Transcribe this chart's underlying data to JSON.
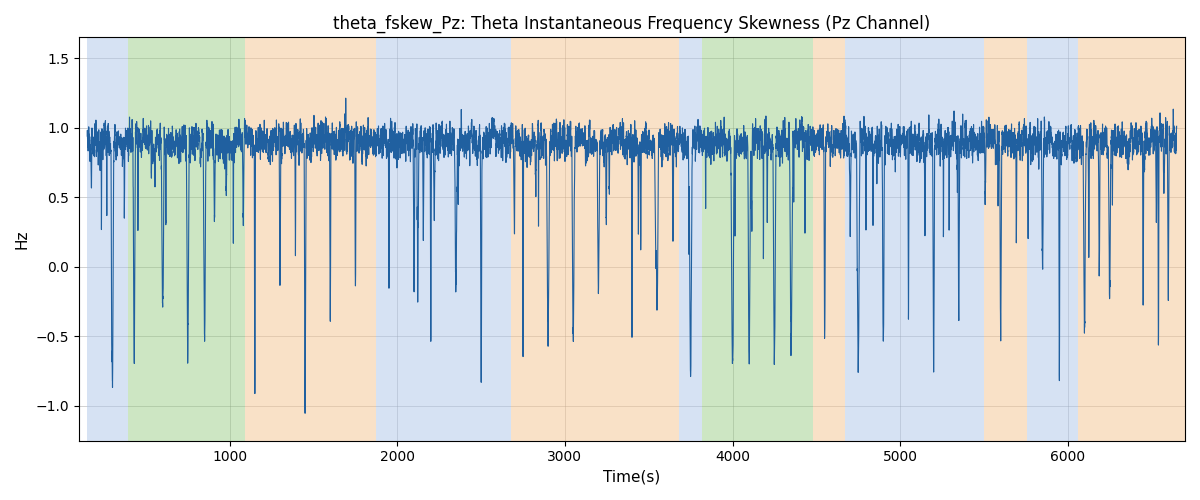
{
  "title": "theta_fskew_Pz: Theta Instantaneous Frequency Skewness (Pz Channel)",
  "xlabel": "Time(s)",
  "ylabel": "Hz",
  "line_color": "#2060a0",
  "line_width": 0.8,
  "ylim": [
    -1.25,
    1.65
  ],
  "xlim": [
    100,
    6700
  ],
  "yticks": [
    -1.0,
    -0.5,
    0.0,
    0.5,
    1.0,
    1.5
  ],
  "xticks": [
    1000,
    2000,
    3000,
    4000,
    5000,
    6000
  ],
  "bg_regions": [
    {
      "xmin": 150,
      "xmax": 390,
      "color": "#aec6e8",
      "alpha": 0.5
    },
    {
      "xmin": 390,
      "xmax": 1090,
      "color": "#90c87a",
      "alpha": 0.45
    },
    {
      "xmin": 1090,
      "xmax": 1870,
      "color": "#f5c490",
      "alpha": 0.5
    },
    {
      "xmin": 1870,
      "xmax": 2680,
      "color": "#aec6e8",
      "alpha": 0.5
    },
    {
      "xmin": 2680,
      "xmax": 3680,
      "color": "#f5c490",
      "alpha": 0.5
    },
    {
      "xmin": 3680,
      "xmax": 3820,
      "color": "#aec6e8",
      "alpha": 0.5
    },
    {
      "xmin": 3820,
      "xmax": 4480,
      "color": "#90c87a",
      "alpha": 0.45
    },
    {
      "xmin": 4480,
      "xmax": 4670,
      "color": "#f5c490",
      "alpha": 0.5
    },
    {
      "xmin": 4670,
      "xmax": 5500,
      "color": "#aec6e8",
      "alpha": 0.5
    },
    {
      "xmin": 5500,
      "xmax": 5760,
      "color": "#f5c490",
      "alpha": 0.5
    },
    {
      "xmin": 5760,
      "xmax": 6060,
      "color": "#aec6e8",
      "alpha": 0.5
    },
    {
      "xmin": 6060,
      "xmax": 6700,
      "color": "#f5c490",
      "alpha": 0.5
    }
  ],
  "figsize": [
    12.0,
    5.0
  ],
  "dpi": 100,
  "title_fontsize": 12,
  "axis_fontsize": 11,
  "tick_fontsize": 10
}
